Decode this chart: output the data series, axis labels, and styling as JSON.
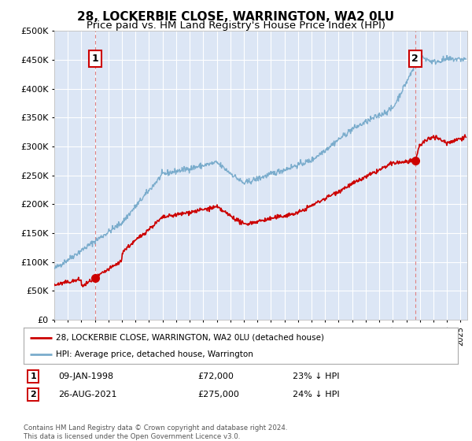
{
  "title": "28, LOCKERBIE CLOSE, WARRINGTON, WA2 0LU",
  "subtitle": "Price paid vs. HM Land Registry's House Price Index (HPI)",
  "sale1_date_label": "09-JAN-1998",
  "sale1_price": 72000,
  "sale1_x": 1998.03,
  "sale1_label": "23% ↓ HPI",
  "sale2_date_label": "26-AUG-2021",
  "sale2_price": 275000,
  "sale2_x": 2021.65,
  "sale2_label": "24% ↓ HPI",
  "legend_label_red": "28, LOCKERBIE CLOSE, WARRINGTON, WA2 0LU (detached house)",
  "legend_label_blue": "HPI: Average price, detached house, Warrington",
  "footer": "Contains HM Land Registry data © Crown copyright and database right 2024.\nThis data is licensed under the Open Government Licence v3.0.",
  "xmin": 1995.0,
  "xmax": 2025.5,
  "ymin": 0,
  "ymax": 500000,
  "red_color": "#cc0000",
  "blue_color": "#7aaccc",
  "bg_color": "#dce6f5",
  "grid_color": "#ffffff",
  "title_fontsize": 11,
  "subtitle_fontsize": 9.5
}
